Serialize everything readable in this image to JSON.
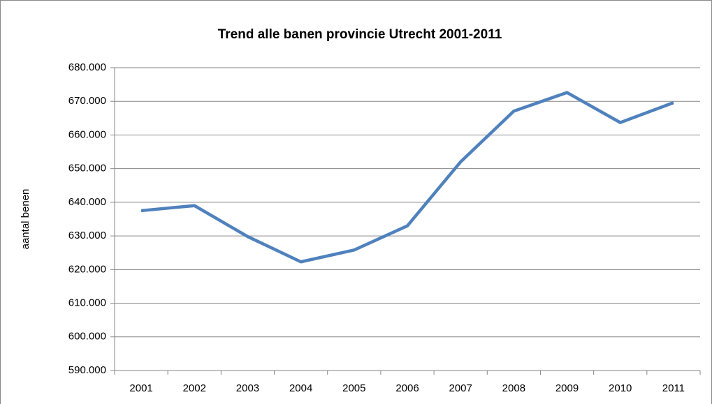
{
  "chart_data": {
    "type": "line",
    "title": "Trend alle banen provincie Utrecht 2001-2011",
    "ylabel": "aantal benen",
    "categories": [
      "2001",
      "2002",
      "2003",
      "2004",
      "2005",
      "2006",
      "2007",
      "2008",
      "2009",
      "2010",
      "2011"
    ],
    "values": [
      637500,
      639000,
      629800,
      622300,
      625800,
      633000,
      652000,
      667100,
      672600,
      663700,
      669600
    ],
    "color": "#4f81bd",
    "ylim": [
      590000,
      680000
    ],
    "yticks": [
      {
        "value": 590000,
        "label": "590.000"
      },
      {
        "value": 600000,
        "label": "600.000"
      },
      {
        "value": 610000,
        "label": "610.000"
      },
      {
        "value": 620000,
        "label": "620.000"
      },
      {
        "value": 630000,
        "label": "630.000"
      },
      {
        "value": 640000,
        "label": "640.000"
      },
      {
        "value": 650000,
        "label": "650.000"
      },
      {
        "value": 660000,
        "label": "660.000"
      },
      {
        "value": 670000,
        "label": "670.000"
      },
      {
        "value": 680000,
        "label": "680.000"
      }
    ],
    "grid": true
  }
}
